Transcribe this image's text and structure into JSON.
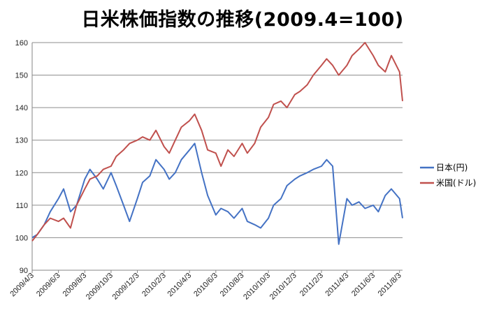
{
  "chart_data": {
    "type": "line",
    "title": "日米株価指数の推移(2009.4=100)",
    "xlabel": "",
    "ylabel": "",
    "ylim": [
      90,
      160
    ],
    "yticks": [
      "90",
      "100",
      "110",
      "120",
      "130",
      "140",
      "150",
      "160"
    ],
    "x_tick_labels": [
      "2009/4/3",
      "2009/6/3",
      "2009/8/3",
      "2009/10/3",
      "2009/12/3",
      "2010/2/3",
      "2010/4/3",
      "2010/6/3",
      "2010/8/3",
      "2010/10/3",
      "2010/12/3",
      "2011/2/3",
      "2011/4/3",
      "2011/6/3",
      "2011/8/3"
    ],
    "grid": "horizontal",
    "legend_position": "right",
    "x": [
      "2009/4/3",
      "2009/4/15",
      "2009/5/1",
      "2009/5/15",
      "2009/6/3",
      "2009/6/15",
      "2009/7/1",
      "2009/7/15",
      "2009/8/3",
      "2009/8/15",
      "2009/9/1",
      "2009/9/15",
      "2009/10/3",
      "2009/10/15",
      "2009/11/1",
      "2009/11/15",
      "2009/12/3",
      "2009/12/15",
      "2010/1/1",
      "2010/1/15",
      "2010/2/3",
      "2010/2/15",
      "2010/3/1",
      "2010/3/15",
      "2010/4/3",
      "2010/4/15",
      "2010/5/1",
      "2010/5/15",
      "2010/6/3",
      "2010/6/15",
      "2010/7/1",
      "2010/7/15",
      "2010/8/3",
      "2010/8/15",
      "2010/9/1",
      "2010/9/15",
      "2010/10/3",
      "2010/10/15",
      "2010/11/1",
      "2010/11/15",
      "2010/12/3",
      "2010/12/15",
      "2011/1/1",
      "2011/1/15",
      "2011/2/3",
      "2011/2/15",
      "2011/3/1",
      "2011/3/15",
      "2011/4/3",
      "2011/4/15",
      "2011/5/1",
      "2011/5/15",
      "2011/6/3",
      "2011/6/15",
      "2011/7/1",
      "2011/7/15",
      "2011/8/3",
      "2011/8/10"
    ],
    "series": [
      {
        "name": "日本(円)",
        "color": "#4472c4",
        "values": [
          100,
          101,
          104,
          108,
          112,
          115,
          108,
          110,
          118,
          121,
          118,
          115,
          120,
          116,
          110,
          105,
          112,
          117,
          119,
          124,
          121,
          118,
          120,
          124,
          127,
          129,
          120,
          113,
          107,
          109,
          108,
          106,
          109,
          105,
          104,
          103,
          106,
          110,
          112,
          116,
          118,
          119,
          120,
          121,
          122,
          124,
          122,
          98,
          112,
          110,
          111,
          109,
          110,
          108,
          113,
          115,
          112,
          106
        ]
      },
      {
        "name": "米国(ドル)",
        "color": "#c0504d",
        "values": [
          99,
          101,
          104,
          106,
          105,
          106,
          103,
          110,
          115,
          118,
          119,
          121,
          122,
          125,
          127,
          129,
          130,
          131,
          130,
          133,
          128,
          126,
          130,
          134,
          136,
          138,
          133,
          127,
          126,
          122,
          127,
          125,
          129,
          126,
          129,
          134,
          137,
          141,
          142,
          140,
          144,
          145,
          147,
          150,
          153,
          155,
          153,
          150,
          153,
          156,
          158,
          160,
          156,
          153,
          151,
          156,
          151,
          142
        ]
      }
    ]
  }
}
